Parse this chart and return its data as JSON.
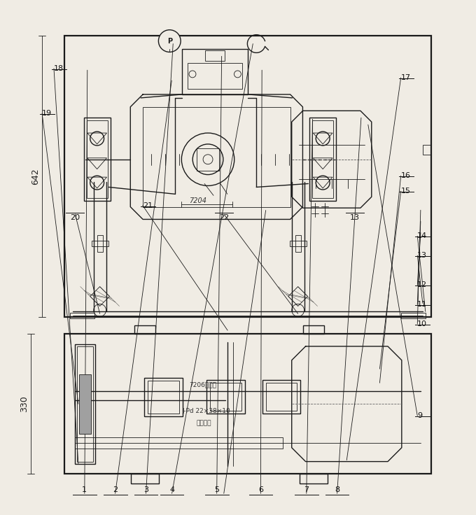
{
  "bg_color": "#f0ece4",
  "line_color": "#1a1a1a",
  "fig_w": 6.8,
  "fig_h": 7.36,
  "dpi": 100,
  "labels_top": [
    {
      "text": "1",
      "fx": 0.175,
      "fy": 0.962
    },
    {
      "text": "2",
      "fx": 0.24,
      "fy": 0.962
    },
    {
      "text": "3",
      "fx": 0.305,
      "fy": 0.962
    },
    {
      "text": "4",
      "fx": 0.36,
      "fy": 0.962
    },
    {
      "text": "5",
      "fx": 0.455,
      "fy": 0.962
    },
    {
      "text": "6",
      "fx": 0.548,
      "fy": 0.962
    },
    {
      "text": "7",
      "fx": 0.645,
      "fy": 0.962
    },
    {
      "text": "8",
      "fx": 0.71,
      "fy": 0.962
    }
  ],
  "labels_right_top": [
    {
      "text": "9",
      "fx": 0.88,
      "fy": 0.81
    },
    {
      "text": "10",
      "fx": 0.88,
      "fy": 0.63
    },
    {
      "text": "11",
      "fx": 0.88,
      "fy": 0.592
    },
    {
      "text": "12",
      "fx": 0.88,
      "fy": 0.554
    },
    {
      "text": "13",
      "fx": 0.88,
      "fy": 0.496
    },
    {
      "text": "14",
      "fx": 0.88,
      "fy": 0.458
    }
  ],
  "labels_bottom_top": [
    {
      "text": "20",
      "fx": 0.155,
      "fy": 0.415
    },
    {
      "text": "22",
      "fx": 0.47,
      "fy": 0.415
    },
    {
      "text": "13",
      "fx": 0.748,
      "fy": 0.415
    }
  ],
  "labels_bot_view": [
    {
      "text": "21",
      "fx": 0.298,
      "fy": 0.398
    },
    {
      "text": "15",
      "fx": 0.845,
      "fy": 0.37
    },
    {
      "text": "16",
      "fx": 0.845,
      "fy": 0.34
    },
    {
      "text": "17",
      "fx": 0.845,
      "fy": 0.148
    },
    {
      "text": "18",
      "fx": 0.11,
      "fy": 0.13
    },
    {
      "text": "19",
      "fx": 0.085,
      "fy": 0.218
    }
  ],
  "dim_642": {
    "fx": 0.082,
    "fy_mid": 0.69,
    "text": "642"
  },
  "dim_330": {
    "fx": 0.06,
    "fy_mid": 0.218,
    "text": "330"
  },
  "ann_7206": {
    "text": "7206本由水",
    "fx": 0.38,
    "fy": 0.248
  },
  "ann_jpd": {
    "text": "J-Pd 22×38×10",
    "fx": 0.375,
    "fy": 0.2
  },
  "ann_seal": {
    "text": "密封油封",
    "fx": 0.405,
    "fy": 0.172
  },
  "ann_7204": {
    "text": "7204",
    "fx": 0.355,
    "fy": 0.617
  }
}
